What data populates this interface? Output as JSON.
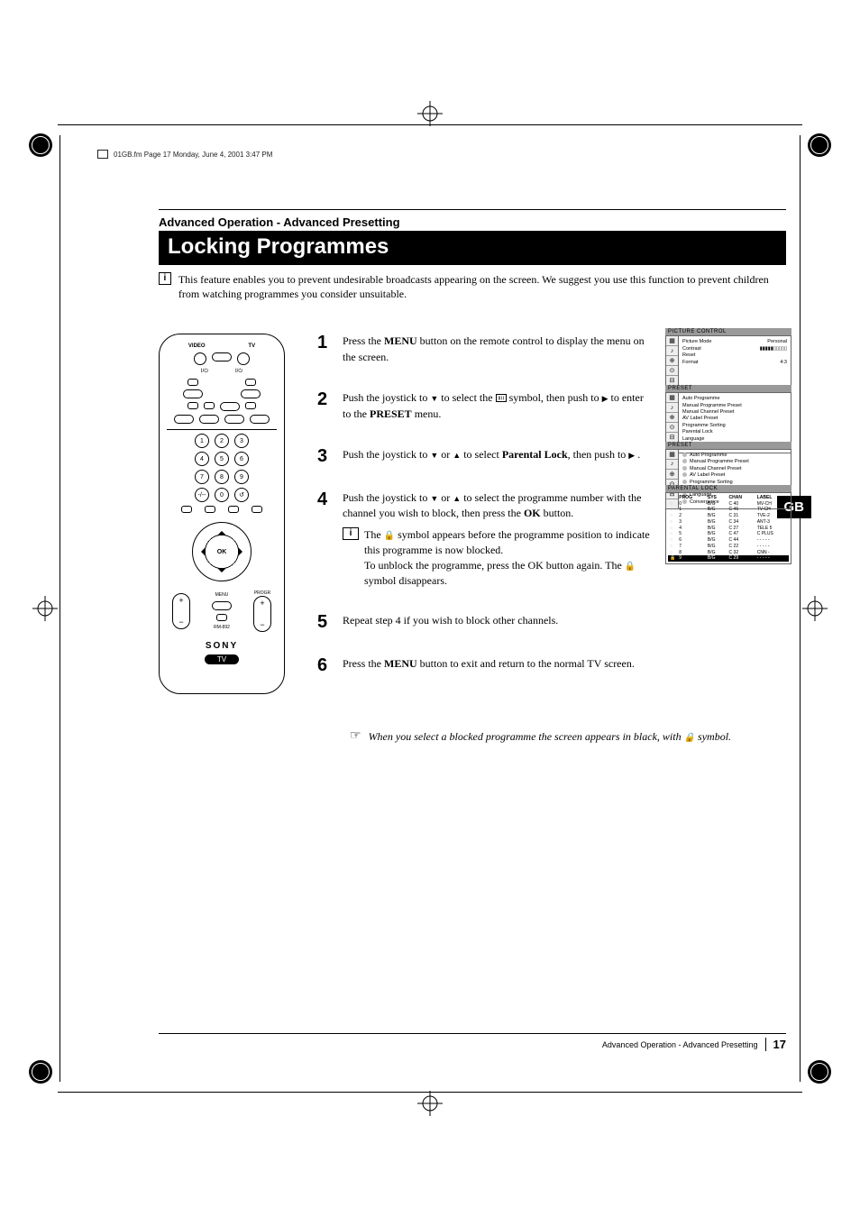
{
  "header_path": "01GB.fm  Page 17  Monday, June 4, 2001  3:47 PM",
  "eyebrow": "Advanced Operation - Advanced Presetting",
  "title": "Locking Programmes",
  "intro": "This feature enables you to prevent undesirable broadcasts appearing on the screen. We suggest you use this function to prevent children from watching programmes you consider unsuitable.",
  "gb_tab": "GB",
  "remote": {
    "label_video": "VIDEO",
    "label_tv": "TV",
    "numbers": [
      "1",
      "2",
      "3",
      "4",
      "5",
      "6",
      "7",
      "8",
      "9",
      "0"
    ],
    "ok": "OK",
    "progr": "PROGR",
    "menu": "MENU",
    "model": "RM-892",
    "sony": "SONY",
    "tv": "TV"
  },
  "steps": {
    "s1": {
      "num": "1",
      "pre": "Press the ",
      "menu": "MENU",
      "post": " button on the remote control to display the menu on the screen."
    },
    "s2": {
      "num": "2",
      "pre": "Push the joystick to ",
      "mid1": " to select the ",
      "mid2": " symbol, then push to ",
      "post": " to enter to the ",
      "preset": "PRESET",
      "end": " menu."
    },
    "s3": {
      "num": "3",
      "pre": "Push the joystick to ",
      "or": " or ",
      "mid": " to select  ",
      "parental": "Parental Lock",
      "post": ", then push to ",
      "end": " ."
    },
    "s4": {
      "num": "4",
      "pre": "Push the joystick to ",
      "or": " or ",
      "mid": " to select the programme number with the channel you wish to block, then press the ",
      "ok": "OK",
      "post": " button."
    },
    "s4_note1_pre": "The ",
    "s4_note1_post": " symbol appears before the programme position to indicate this programme is now blocked.",
    "s4_note2_pre": "To unblock the programme, press the OK button again. The ",
    "s4_note2_post": " symbol disappears.",
    "s5": {
      "num": "5",
      "text": "Repeat step 4 if you wish to block other channels."
    },
    "s6": {
      "num": "6",
      "pre": "Press the ",
      "menu": "MENU",
      "post": " button to exit and return to the normal TV screen."
    },
    "hand_pre": "When you select a blocked programme the screen appears in black, with ",
    "hand_post": " symbol."
  },
  "screens": {
    "s1": {
      "title": "PICTURE  CONTROL",
      "rows": [
        [
          "Picture Mode",
          "Personal"
        ],
        [
          "Contrast",
          "▮▮▮▮▮▯▯▯▯▯"
        ],
        [
          "Reset",
          ""
        ],
        [
          "Format",
          "4:3"
        ]
      ]
    },
    "s2": {
      "title": "PRESET",
      "items": [
        "Auto Programme",
        "Manual Programme Preset",
        "Manual Channel Preset",
        "AV Label Preset",
        "Programme Sorting",
        "Parental Lock",
        "Language",
        "Convergence"
      ]
    },
    "s3": {
      "title": "PRESET",
      "items": [
        "Auto Programme",
        "Manual Programme Preset",
        "Manual Channel Preset",
        "AV Label Preset",
        "Programme Sorting",
        "Parental Lock",
        "Language",
        "Convergence"
      ],
      "selected_index": 5
    },
    "s4": {
      "title": "PARENTAL  LOCK",
      "headers": [
        "PROG",
        "SYS",
        "CHAN",
        "LABEL"
      ],
      "rows": [
        [
          "0",
          "B/G",
          "C 40",
          "MV-CH"
        ],
        [
          "1",
          "B/G",
          "C 46",
          "TV-CH"
        ],
        [
          "2",
          "B/G",
          "C 31",
          "TVE-2"
        ],
        [
          "3",
          "B/G",
          "C 34",
          "ANT-3"
        ],
        [
          "4",
          "B/G",
          "C 27",
          "TELE 5"
        ],
        [
          "5",
          "B/G",
          "C 47",
          "C PLUS"
        ],
        [
          "6",
          "B/G",
          "C 44",
          "- - - - -"
        ],
        [
          "7",
          "B/G",
          "C 22",
          "- - - - -"
        ],
        [
          "8",
          "B/G",
          "C 32",
          "CNN -"
        ],
        [
          "9",
          "B/G",
          "C 29",
          "- - - - -"
        ]
      ],
      "locked_index": 9
    }
  },
  "footer": {
    "text": "Advanced Operation - Advanced Presetting",
    "page": "17"
  },
  "screen_icons": [
    "▦",
    "♪",
    "⊕",
    "⊙",
    "⊟"
  ]
}
